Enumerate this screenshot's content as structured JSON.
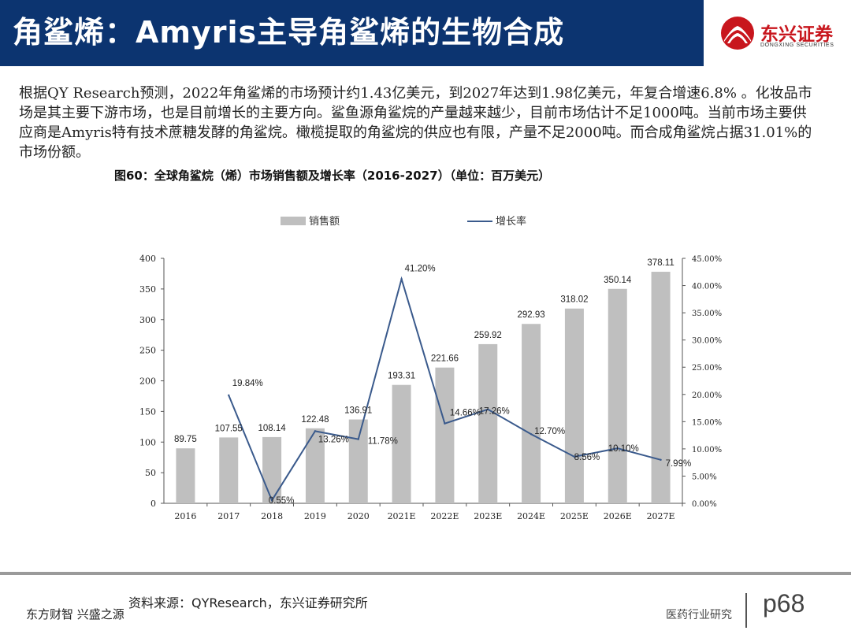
{
  "header": {
    "title": "角鲨烯：Amyris主导角鲨烯的生物合成"
  },
  "logo": {
    "name_cn": "东兴证券",
    "name_en": "DONGXING SECURITIES"
  },
  "intro": "根据QY Research预测，2022年角鲨烯的市场预计约1.43亿美元，到2027年达到1.98亿美元，年复合增速6.8% 。化妆品市场是其主要下游市场，也是目前增长的主要方向。鲨鱼源角鲨烷的产量越来越少，目前市场估计不足1000吨。当前市场主要供应商是Amyris特有技术蔗糖发酵的角鲨烷。橄榄提取的角鲨烷的供应也有限，产量不足2000吨。而合成角鲨烷占据31.01%的市场份额。",
  "figure_title": "图60：全球角鲨烷（烯）市场销售额及增长率（2016-2027）（单位：百万美元）",
  "chart_data": {
    "type": "bar",
    "title": "图60：全球角鲨烷（烯）市场销售额及增长率（2016-2027）（单位：百万美元）",
    "categories": [
      "2016",
      "2017",
      "2018",
      "2019",
      "2020",
      "2021E",
      "2022E",
      "2023E",
      "2024E",
      "2025E",
      "2026E",
      "2027E"
    ],
    "series": [
      {
        "name": "销售额",
        "type": "bar",
        "axis": "left",
        "values": [
          89.75,
          107.55,
          108.14,
          122.48,
          136.91,
          193.31,
          221.66,
          259.92,
          292.93,
          318.02,
          350.14,
          378.11
        ],
        "labels": [
          "89.75",
          "107.55",
          "108.14",
          "122.48",
          "136.91",
          "193.31",
          "221.66",
          "259.92",
          "292.93",
          "318.02",
          "350.14",
          "378.11"
        ]
      },
      {
        "name": "增长率",
        "type": "line",
        "axis": "right",
        "values": [
          null,
          19.84,
          0.55,
          13.26,
          11.78,
          41.2,
          14.66,
          17.26,
          12.7,
          8.56,
          10.1,
          7.99
        ],
        "labels": [
          "",
          "19.84%",
          "0.55%",
          "13.26%",
          "11.78%",
          "41.20%",
          "14.66%",
          "17.26%",
          "12.70%",
          "8.56%",
          "10.10%",
          "7.99%"
        ]
      }
    ],
    "y_left": {
      "lim": [
        0,
        400
      ],
      "ticks": [
        "0",
        "50",
        "100",
        "150",
        "200",
        "250",
        "300",
        "350",
        "400"
      ]
    },
    "y_right": {
      "lim": [
        0,
        45
      ],
      "ticks": [
        "0.00%",
        "5.00%",
        "10.00%",
        "15.00%",
        "20.00%",
        "25.00%",
        "30.00%",
        "35.00%",
        "40.00%",
        "45.00%"
      ]
    },
    "legend_position": "top",
    "grid": false,
    "colors": {
      "bar": "#bfbfbf",
      "line": "#3a5a8c"
    }
  },
  "footer": {
    "source": "资料来源：QYResearch，东兴证券研究所",
    "slogan": "东方财智 兴盛之源",
    "department": "医药行业研究",
    "page": "p68"
  },
  "colors": {
    "header_bg": "#0c3470",
    "brand_red": "#c8161d"
  },
  "icons": {
    "logo": "dongxing-logo-icon"
  }
}
